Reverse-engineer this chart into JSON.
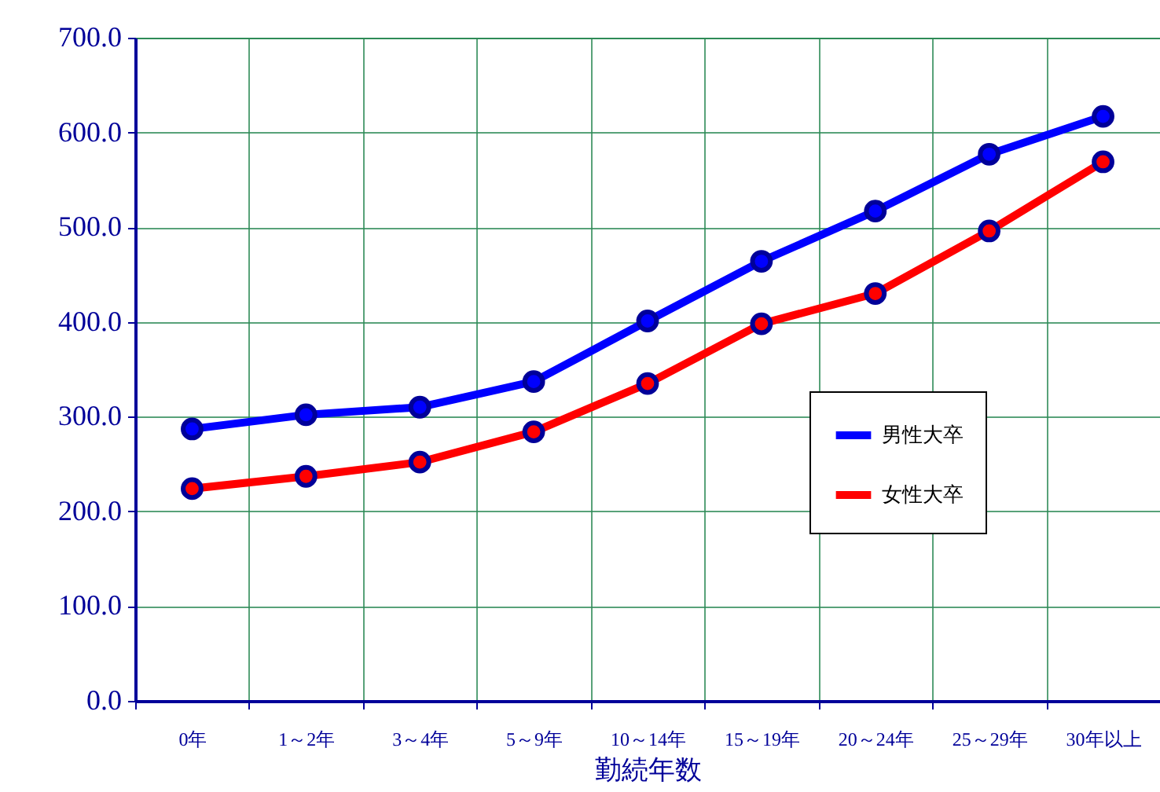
{
  "chart_data": {
    "type": "line",
    "xlabel": "勤続年数",
    "categories": [
      "0年",
      "1～2年",
      "3～4年",
      "5～9年",
      "10～14年",
      "15～19年",
      "20～24年",
      "25～29年",
      "30年以上"
    ],
    "series": [
      {
        "name": "男性大卒",
        "color": "#0000ff",
        "values": [
          287,
          302,
          310,
          337,
          401,
          464,
          517,
          577,
          617
        ]
      },
      {
        "name": "女性大卒",
        "color": "#ff0000",
        "values": [
          224,
          237,
          252,
          284,
          335,
          398,
          430,
          496,
          569
        ]
      }
    ],
    "ylim": [
      0,
      700
    ],
    "yticks": [
      {
        "value": 0,
        "label": "0.0"
      },
      {
        "value": 100,
        "label": "100.0"
      },
      {
        "value": 200,
        "label": "200.0"
      },
      {
        "value": 300,
        "label": "300.0"
      },
      {
        "value": 400,
        "label": "400.0"
      },
      {
        "value": 500,
        "label": "500.0"
      },
      {
        "value": 600,
        "label": "600.0"
      },
      {
        "value": 700,
        "label": "700.0"
      }
    ],
    "grid": true,
    "legend": "right",
    "marker": "circle",
    "line_style": "solid"
  }
}
